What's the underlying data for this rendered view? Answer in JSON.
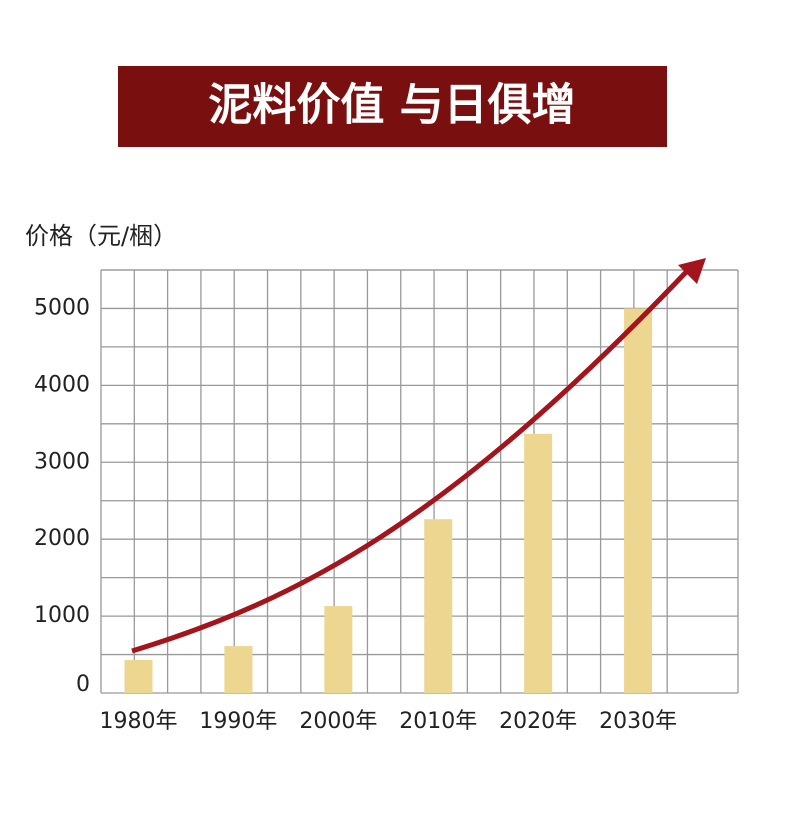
{
  "chart_data": {
    "type": "bar",
    "title": "泥料价值 与日俱增",
    "y_label": "价格（元/梱）",
    "categories": [
      "1980年",
      "1990年",
      "2000年",
      "2010年",
      "2020年",
      "2030年"
    ],
    "values": [
      430,
      610,
      1130,
      2260,
      3370,
      5000
    ],
    "color": "#ecd690",
    "ylim": [
      0,
      5500
    ],
    "yticks": [
      0,
      1000,
      2000,
      3000,
      4000,
      5000
    ],
    "minor_yticks": [
      500,
      1500,
      2500,
      3500,
      4500,
      5500
    ],
    "grid": true
  }
}
